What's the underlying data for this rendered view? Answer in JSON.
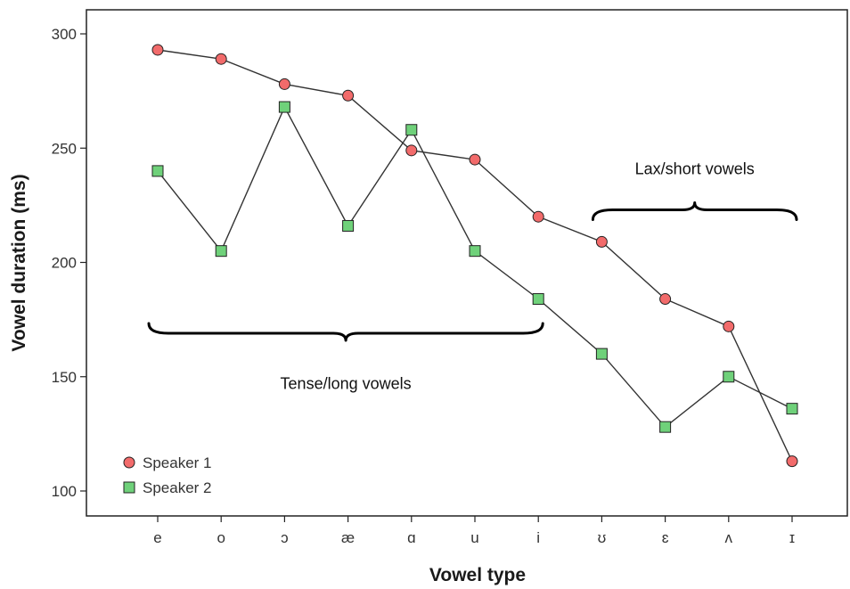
{
  "chart_data": {
    "type": "line",
    "xlabel": "Vowel type",
    "ylabel": "Vowel duration (ms)",
    "ylim": [
      100,
      300
    ],
    "yticks": [
      100,
      150,
      200,
      250,
      300
    ],
    "categories": [
      "e",
      "o",
      "ɔ",
      "æ",
      "ɑ",
      "u",
      "i",
      "ʊ",
      "ɛ",
      "ʌ",
      "ɪ"
    ],
    "series": [
      {
        "name": "Speaker 1",
        "marker": "circle",
        "color": "#f26b6b",
        "values": [
          293,
          289,
          278,
          273,
          249,
          245,
          220,
          209,
          184,
          172,
          113
        ]
      },
      {
        "name": "Speaker 2",
        "marker": "square",
        "color": "#6fd17a",
        "values": [
          240,
          205,
          268,
          216,
          258,
          205,
          184,
          160,
          128,
          150,
          136
        ]
      }
    ],
    "legend_position": "bottom-left",
    "grid": false,
    "annotations": [
      {
        "text": "Tense/long vowels",
        "from_category": 0,
        "to_category": 6,
        "brace_value": 169,
        "text_value": 147
      },
      {
        "text": "Lax/short vowels",
        "from_category": 7,
        "to_category": 10,
        "brace_value": 223,
        "text_value": 241
      }
    ]
  }
}
